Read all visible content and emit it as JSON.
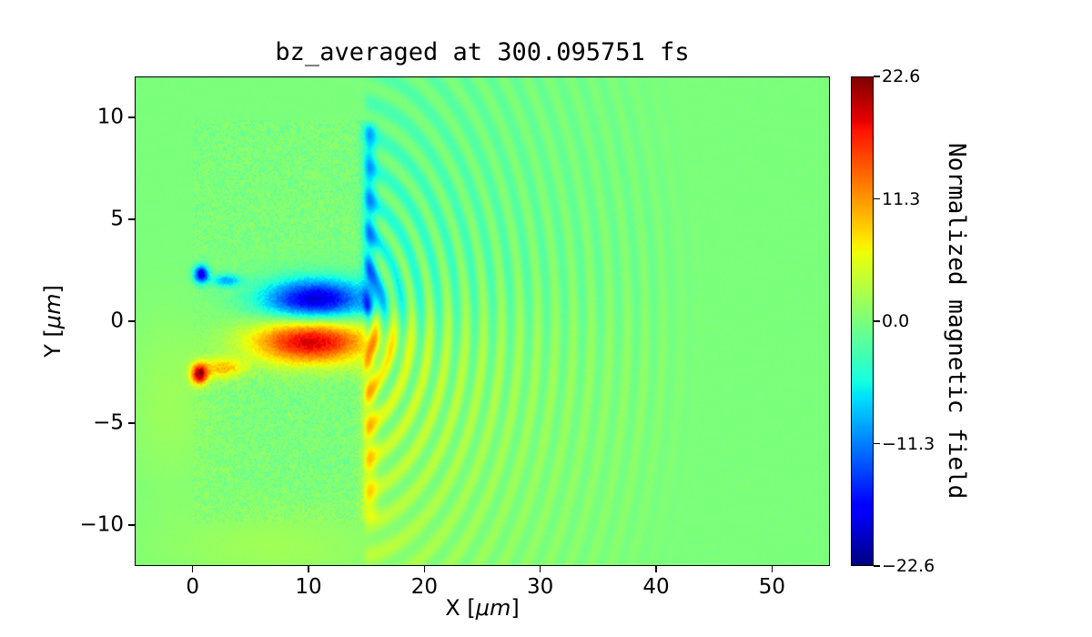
{
  "figure": {
    "background": "#ffffff"
  },
  "chart_data": {
    "type": "heatmap",
    "title": "bz_averaged at 300.095751 fs",
    "xlabel": "X [μm]",
    "xlabel_parts": [
      "X [",
      "μm",
      "]"
    ],
    "ylabel": "Y [μm]",
    "ylabel_parts": [
      "Y [",
      "μm",
      "]"
    ],
    "xlim": [
      -5,
      55
    ],
    "ylim": [
      -12,
      12
    ],
    "xticks": [
      {
        "value": 0,
        "label": "0"
      },
      {
        "value": 10,
        "label": "10"
      },
      {
        "value": 20,
        "label": "20"
      },
      {
        "value": 30,
        "label": "30"
      },
      {
        "value": 40,
        "label": "40"
      },
      {
        "value": 50,
        "label": "50"
      }
    ],
    "yticks": [
      {
        "value": 10,
        "label": "10"
      },
      {
        "value": 5,
        "label": "5"
      },
      {
        "value": 0,
        "label": "0"
      },
      {
        "value": -5,
        "label": "−5"
      },
      {
        "value": -10,
        "label": "−10"
      }
    ],
    "colormap": "jet",
    "grid": false,
    "colorbar": {
      "label": "Normalized magnetic field",
      "vmin": -22.6,
      "vmax": 22.6,
      "ticks": [
        {
          "value": 22.6,
          "label": "22.6"
        },
        {
          "value": 11.3,
          "label": "11.3"
        },
        {
          "value": 0,
          "label": "0.0"
        },
        {
          "value": -11.3,
          "label": "−11.3"
        },
        {
          "value": -22.6,
          "label": "−22.6"
        }
      ]
    },
    "field_model": {
      "description": "Laser-driven slab target with central channel: bipolar Bz lobes inside the channel (negative above axis, positive below) and circular wavefronts radiating from the channel exit at x≈15 μm",
      "background_value": 0,
      "target_blocks": [
        {
          "x_range": [
            0,
            14.8
          ],
          "y_range": [
            3.6,
            9.9
          ],
          "speckle": 1.6
        },
        {
          "x_range": [
            0,
            14.8
          ],
          "y_range": [
            -9.9,
            -2.1
          ],
          "speckle": 1.6
        }
      ],
      "channel": {
        "x_range": [
          0,
          14.8
        ],
        "y_range": [
          -2.1,
          3.6
        ],
        "speckle": 1.0
      },
      "lobes": [
        {
          "center": [
            10.6,
            1.05
          ],
          "sigma": [
            3.2,
            0.72
          ],
          "peak": -19.5
        },
        {
          "center": [
            10.2,
            -1.0
          ],
          "sigma": [
            3.6,
            0.78
          ],
          "peak": 19.5
        },
        {
          "center": [
            0.75,
            2.3
          ],
          "sigma": [
            0.45,
            0.3
          ],
          "peak": -19
        },
        {
          "center": [
            2.9,
            2.0
          ],
          "sigma": [
            0.9,
            0.22
          ],
          "peak": -9
        },
        {
          "center": [
            0.6,
            -2.6
          ],
          "sigma": [
            0.5,
            0.35
          ],
          "peak": 20
        },
        {
          "center": [
            2.6,
            -2.3
          ],
          "sigma": [
            1.3,
            0.35
          ],
          "peak": 9
        },
        {
          "center": [
            -2.0,
            -4.0
          ],
          "sigma": [
            2.5,
            3.0
          ],
          "peak": 1.8
        },
        {
          "center": [
            7.0,
            -11.0
          ],
          "sigma": [
            7.0,
            1.3
          ],
          "peak": 2.0
        }
      ],
      "edge_bands": [
        {
          "x": 15.25,
          "sigma": 0.45,
          "y_range": [
            0.4,
            9.7
          ],
          "peak": -6.5
        },
        {
          "x": 15.25,
          "sigma": 0.5,
          "y_range": [
            -9.7,
            -1.9
          ],
          "peak": 5
        }
      ],
      "ripples": {
        "center": [
          13.5,
          0
        ],
        "wavelength": 1.55,
        "amplitude": 5,
        "decay_length": 16,
        "max_radius": 31,
        "fade_width": 5,
        "bias_amplitude": 4.2,
        "bias_decay": 9
      }
    }
  }
}
